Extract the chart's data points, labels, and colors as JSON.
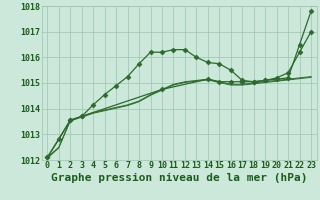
{
  "title": "Graphe pression niveau de la mer (hPa)",
  "xlabel_hours": [
    0,
    1,
    2,
    3,
    4,
    5,
    6,
    7,
    8,
    9,
    10,
    11,
    12,
    13,
    14,
    15,
    16,
    17,
    18,
    19,
    20,
    21,
    22,
    23
  ],
  "line1_x": [
    0,
    1,
    2,
    3,
    4,
    5,
    6,
    7,
    8,
    9,
    10,
    11,
    12,
    13,
    14,
    15,
    16,
    17,
    18,
    19,
    20,
    21,
    22,
    23
  ],
  "line1_y": [
    1012.1,
    1012.5,
    1013.55,
    1013.7,
    1013.85,
    1013.95,
    1014.05,
    1014.15,
    1014.3,
    1014.55,
    1014.75,
    1014.95,
    1015.05,
    1015.1,
    1015.15,
    1015.05,
    1014.95,
    1014.95,
    1015.0,
    1015.05,
    1015.1,
    1015.15,
    1015.2,
    1015.25
  ],
  "line2_x": [
    0,
    1,
    2,
    3,
    4,
    5,
    6,
    7,
    8,
    9,
    10,
    11,
    12,
    13,
    14,
    15,
    16,
    17,
    18,
    19,
    20,
    21,
    22,
    23
  ],
  "line2_y": [
    1012.1,
    1012.8,
    1013.55,
    1013.7,
    1014.15,
    1014.55,
    1014.9,
    1015.25,
    1015.75,
    1016.2,
    1016.2,
    1016.3,
    1016.3,
    1016.0,
    1015.8,
    1015.75,
    1015.5,
    1015.1,
    1015.05,
    1015.1,
    1015.2,
    1015.4,
    1016.2,
    1017.0
  ],
  "line3_x": [
    0,
    2,
    3,
    10,
    14,
    15,
    16,
    17,
    18,
    19,
    20,
    21,
    22,
    23
  ],
  "line3_y": [
    1012.1,
    1013.55,
    1013.7,
    1014.75,
    1015.15,
    1015.05,
    1015.05,
    1015.05,
    1015.05,
    1015.1,
    1015.15,
    1015.2,
    1016.5,
    1017.8
  ],
  "line_color": "#2d6a2d",
  "bg_color": "#cce8da",
  "grid_color": "#9ec4b0",
  "text_color": "#1a5c1a",
  "ylim": [
    1012.0,
    1018.0
  ],
  "xlim": [
    -0.5,
    23.5
  ],
  "yticks": [
    1012,
    1013,
    1014,
    1015,
    1016,
    1017,
    1018
  ],
  "title_fontsize": 8,
  "tick_fontsize": 6
}
